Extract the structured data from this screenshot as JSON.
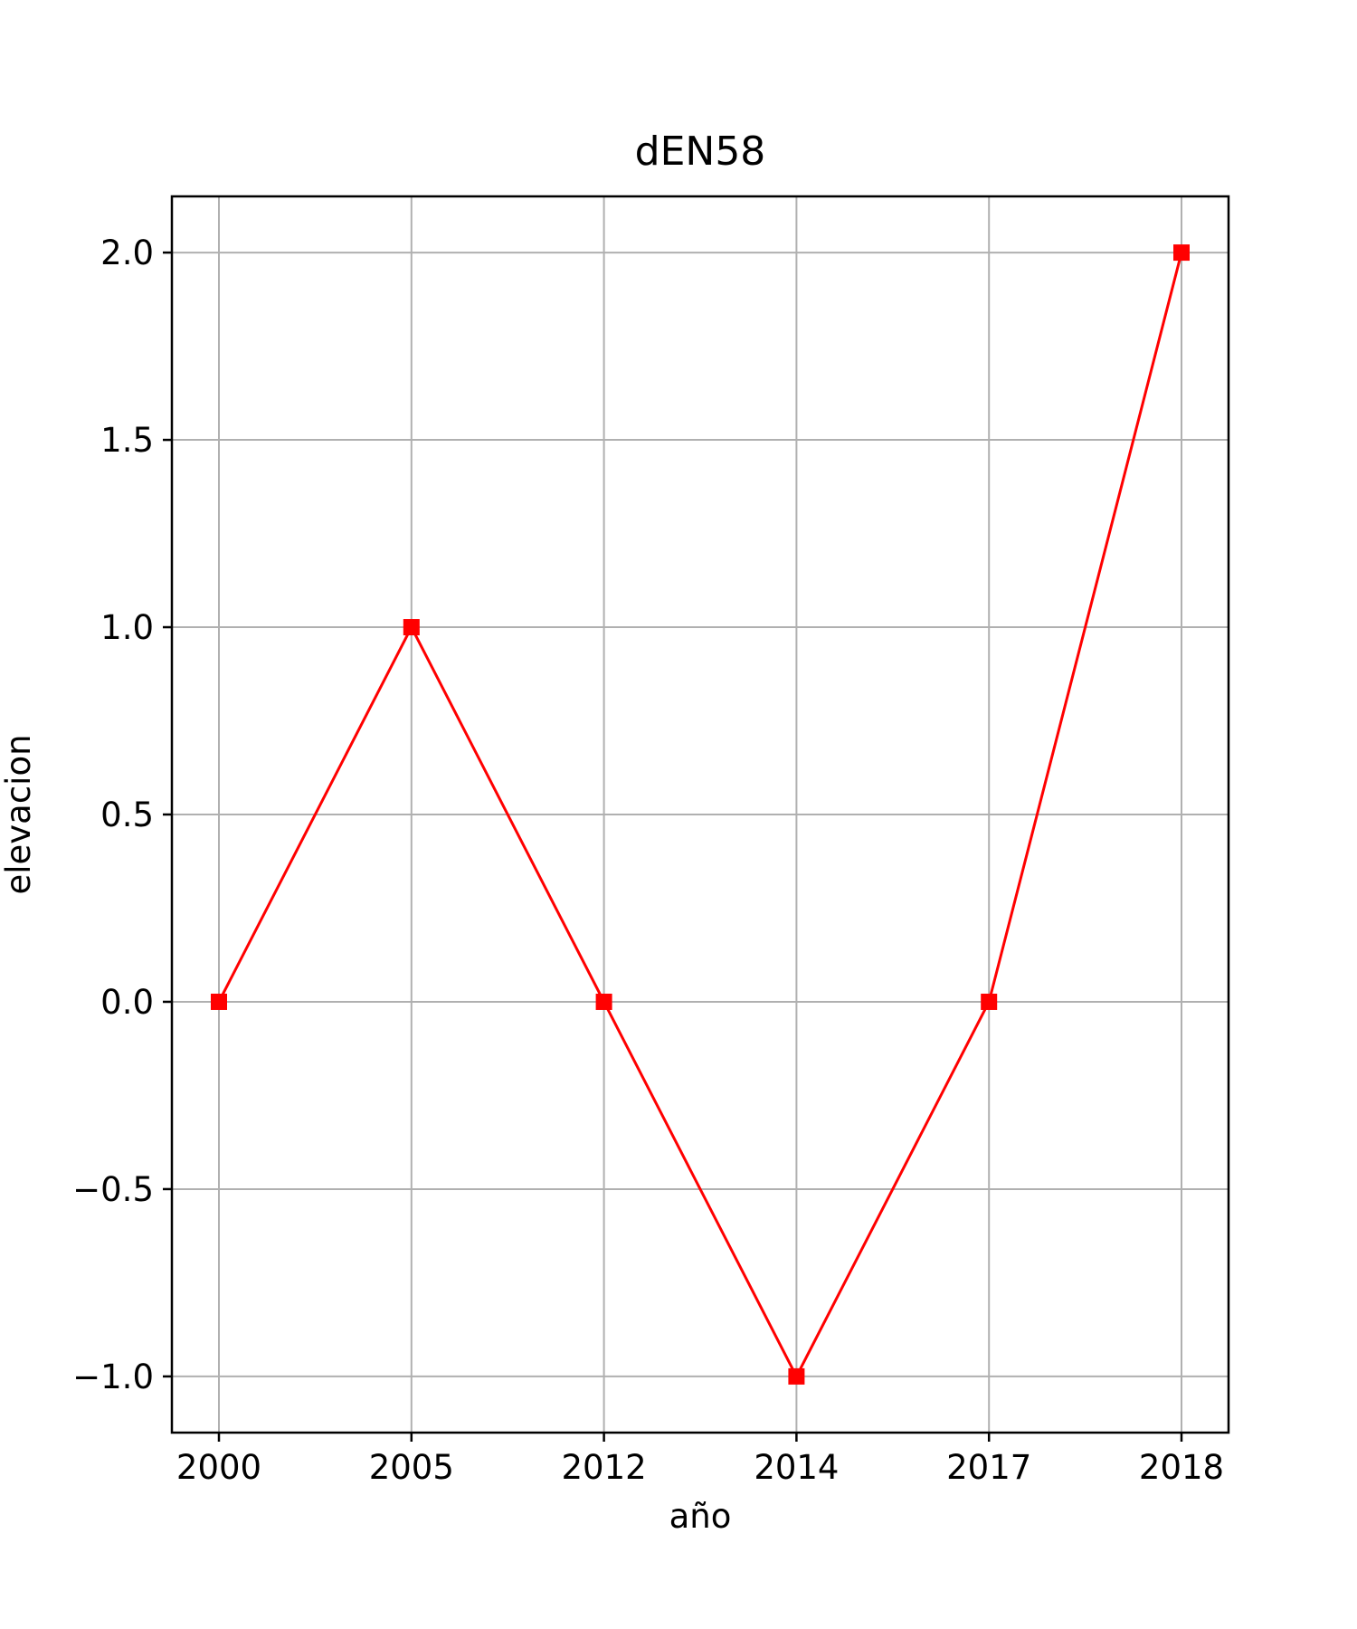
{
  "chart_data": {
    "type": "line",
    "title": "dEN58",
    "xlabel": "año",
    "ylabel": "elevacion",
    "categories": [
      "2000",
      "2005",
      "2012",
      "2014",
      "2017",
      "2018"
    ],
    "series": [
      {
        "values": [
          0,
          1,
          0,
          -1,
          0,
          2
        ],
        "color": "#ff0000",
        "marker": "square"
      }
    ],
    "yticks": [
      -1.0,
      -0.5,
      0.0,
      0.5,
      1.0,
      1.5,
      2.0
    ],
    "ytick_labels": [
      "−1.0",
      "−0.5",
      "0.0",
      "0.5",
      "1.0",
      "1.5",
      "2.0"
    ],
    "ylim": [
      -1.15,
      2.15
    ],
    "grid": true,
    "legend": "none"
  }
}
